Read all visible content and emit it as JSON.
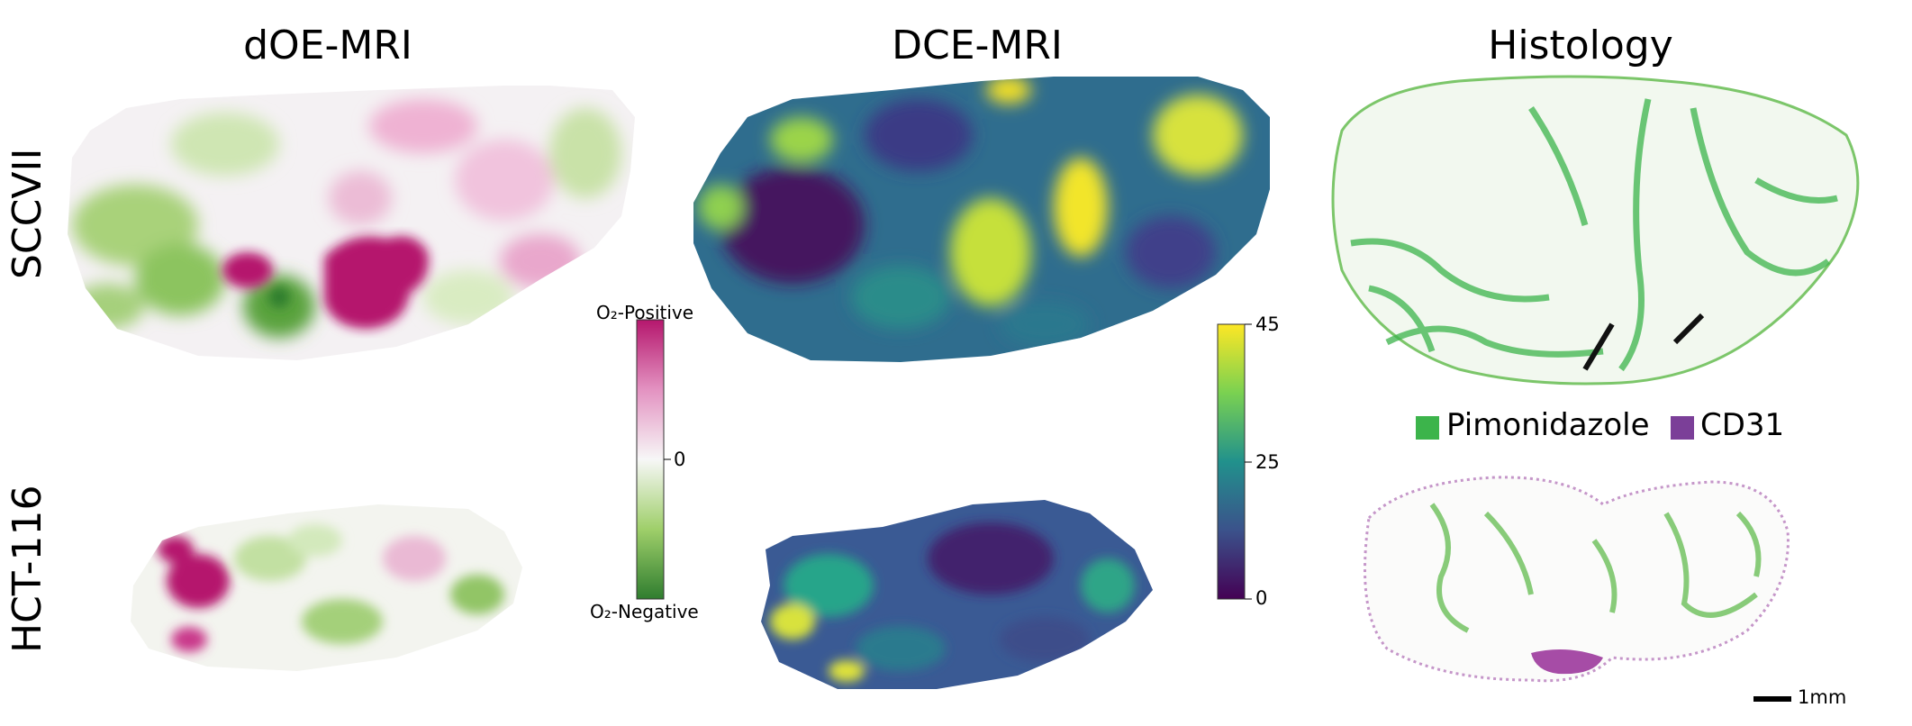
{
  "columns": [
    "dOE-MRI",
    "DCE-MRI",
    "Histology"
  ],
  "rows": [
    "SCCVII",
    "HCT-116"
  ],
  "colorbar_oxygen": {
    "top_label": "O₂-Positive",
    "middle_label": "0",
    "bottom_label": "O₂-Negative",
    "colors": {
      "positive": "#b5176d",
      "neutral": "#f7f7f7",
      "negative": "#2f7d2f"
    }
  },
  "colorbar_dce": {
    "ticks": [
      "45",
      "25",
      "0"
    ],
    "colors": [
      "#fde725",
      "#21918c",
      "#440154"
    ]
  },
  "legend": {
    "items": [
      {
        "label": "Pimonidazole",
        "color": "#3cb44b"
      },
      {
        "label": "CD31",
        "color": "#7b3f98"
      }
    ]
  },
  "scale_bar": {
    "label": "1mm"
  }
}
